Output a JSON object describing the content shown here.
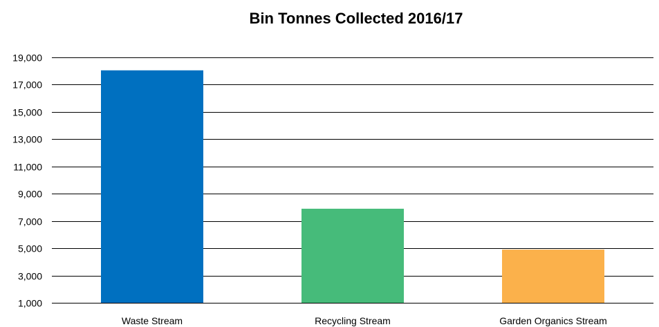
{
  "chart_data": {
    "type": "bar",
    "title": "Bin Tonnes Collected 2016/17",
    "xlabel": "",
    "ylabel": "",
    "categories": [
      "Waste Stream",
      "Recycling Stream",
      "Garden Organics Stream"
    ],
    "values": [
      18050,
      7900,
      4900
    ],
    "colors": [
      "#0070C0",
      "#46BB7A",
      "#FBB14B"
    ],
    "ylim": [
      1000,
      19000
    ],
    "yticks": [
      1000,
      3000,
      5000,
      7000,
      9000,
      11000,
      13000,
      15000,
      17000,
      19000
    ],
    "ytick_labels": [
      "1,000",
      "3,000",
      "5,000",
      "7,000",
      "9,000",
      "11,000",
      "13,000",
      "15,000",
      "17,000",
      "19,000"
    ],
    "grid": true,
    "legend": "none"
  }
}
